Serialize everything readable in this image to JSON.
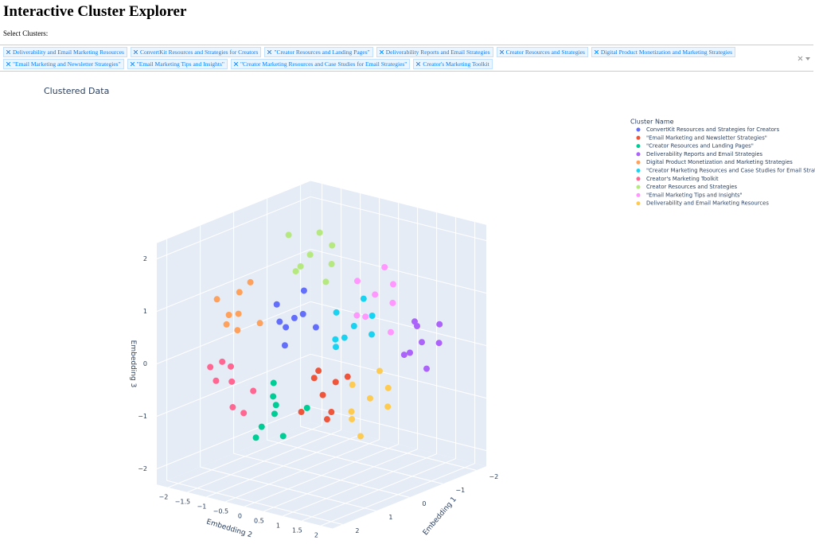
{
  "header": {
    "title": "Interactive Cluster Explorer",
    "label": "Select Clusters:"
  },
  "dropdown": {
    "chips": [
      "Deliverability and Email Marketing Resources",
      "ConvertKit Resources and Strategies for Creators",
      "\"Creator Resources and Landing Pages\"",
      "Deliverability Reports and Email Strategies",
      "Creator Resources and Strategies",
      "Digital Product Monetization and Marketing Strategies",
      "\"Email Marketing and Newsletter Strategies\"",
      "\"Email Marketing Tips and Insights\"",
      "\"Creator Marketing Resources and Case Studies for Email Strategies\"",
      "Creator's Marketing Toolkit"
    ]
  },
  "chart_data": {
    "type": "scatter3d",
    "title": "Clustered Data",
    "legend_title": "Cluster Name",
    "xlabel": "Embedding 1",
    "ylabel": "Embedding 2",
    "zlabel": "Embedding 3",
    "xlim": [
      -2.3,
      2.3
    ],
    "ylim": [
      -2.3,
      2.3
    ],
    "zlim": [
      -2.3,
      2.3
    ],
    "xticks": [
      {
        "value": -2,
        "label": "−2"
      },
      {
        "value": -1,
        "label": "−1"
      },
      0,
      1,
      2
    ],
    "yticks": [
      {
        "value": -2,
        "label": "−2"
      },
      {
        "value": -1.5,
        "label": "−1.5"
      },
      {
        "value": -1,
        "label": "−1"
      },
      {
        "value": -0.5,
        "label": "−0.5"
      },
      0,
      0.5,
      1,
      1.5,
      2
    ],
    "zticks": [
      {
        "value": -2,
        "label": "−2"
      },
      {
        "value": -1,
        "label": "−1"
      },
      0,
      1,
      2
    ],
    "grid": true,
    "series": [
      {
        "name": "ConvertKit Resources and Strategies for Creators",
        "color": "#636efa",
        "x": [
          0,
          0.3,
          -0.3,
          0.2,
          -0.2,
          0.4,
          -0.4,
          0.1
        ],
        "y": [
          -0.71,
          -0.91,
          -0.41,
          -0.31,
          -1.11,
          -0.61,
          -0.81,
          -1.01
        ],
        "z": [
          0.57,
          0.87,
          0.37,
          0.77,
          0.27,
          0.17,
          0.97,
          0.47
        ]
      },
      {
        "name": "\"Email Marketing and Newsletter Strategies\"",
        "color": "#EF553B",
        "x": [
          0.1,
          -0.3,
          0.4,
          -0.1,
          0.3,
          -0.4,
          0.2,
          0
        ],
        "y": [
          0.12,
          0.42,
          -0.18,
          -0.28,
          0.52,
          0.02,
          0.32,
          -0.08
        ],
        "z": [
          -0.72,
          -0.42,
          -1.02,
          -0.52,
          -0.92,
          -0.62,
          -1.12,
          -0.32
        ]
      },
      {
        "name": "\"Creator Resources and Landing Pages\"",
        "color": "#00cc96",
        "x": [
          0,
          0.3,
          -0.3,
          0.2,
          -0.2,
          0.5,
          -0.4,
          0.1
        ],
        "y": [
          -1.23,
          -0.93,
          -1.53,
          -0.83,
          -1.43,
          -1.13,
          -0.73,
          -1.63
        ],
        "z": [
          -1.35,
          -1.05,
          -1.15,
          -1.65,
          -0.85,
          -1.45,
          -1.25,
          -1.85
        ]
      },
      {
        "name": "Deliverability Reports and Email Strategies",
        "color": "#ab63fa",
        "x": [
          -1,
          -1.3,
          -0.7,
          -1.2,
          -0.8,
          -1.4,
          -0.9,
          -1.1
        ],
        "y": [
          1.75,
          1.95,
          1.55,
          1.45,
          2.05,
          1.85,
          1.65,
          1.35
        ],
        "z": [
          0.3,
          0.6,
          0.1,
          0.5,
          -0.1,
          0.2,
          0.7,
          0
        ]
      },
      {
        "name": "Digital Product Monetization and Marketing Strategies",
        "color": "#FFA15A",
        "x": [
          1,
          1.3,
          0.7,
          1.2,
          0.8,
          1.4,
          0.9,
          1.1
        ],
        "y": [
          -1.3,
          -1.6,
          -1.0,
          -1.1,
          -1.5,
          -1.2,
          -1.7,
          -0.9
        ],
        "z": [
          0.8,
          1.1,
          0.6,
          1.3,
          0.4,
          0.9,
          0.5,
          1.5
        ]
      },
      {
        "name": "\"Creator Marketing Resources and Case Studies for Email Strategies\"",
        "color": "#19d3f3",
        "x": [
          0,
          0.3,
          -0.3,
          0.2,
          -0.2,
          0.4,
          -0.4,
          0.1
        ],
        "y": [
          0.85,
          0.65,
          1.05,
          0.55,
          1.15,
          0.95,
          0.75,
          0.45
        ],
        "z": [
          0.7,
          1.0,
          0.5,
          0.3,
          0.9,
          0.6,
          1.1,
          0.4
        ]
      },
      {
        "name": "Creator's Marketing Toolkit",
        "color": "#FF6692",
        "x": [
          1.2,
          1.5,
          0.9,
          1.4,
          1.0,
          1.6,
          1.1,
          1.3
        ],
        "y": [
          -1.3,
          -1.6,
          -1.0,
          -1.1,
          -1.5,
          -1.2,
          -1.8,
          -0.9
        ],
        "z": [
          -0.44,
          -0.14,
          -0.64,
          -0.84,
          -0.24,
          0.06,
          -0.54,
          -0.94
        ]
      },
      {
        "name": "Creator Resources and Strategies",
        "color": "#B6E880",
        "x": [
          0,
          0.3,
          -0.3,
          0.2,
          -0.2,
          0.4,
          -0.4,
          0.1
        ],
        "y": [
          -0.3,
          -0.6,
          0,
          -0.5,
          0.1,
          -0.2,
          -0.4,
          0.2
        ],
        "z": [
          1.85,
          2.25,
          1.65,
          1.55,
          2.05,
          1.75,
          2.15,
          1.45
        ]
      },
      {
        "name": "\"Email Marketing Tips and Insights\"",
        "color": "#FF97FF",
        "x": [
          0,
          0.3,
          -0.3,
          0.2,
          -0.2,
          0.4,
          -0.4,
          0.1
        ],
        "y": [
          1.4,
          1.2,
          1.6,
          1.1,
          1.7,
          1.5,
          1.3,
          1.9
        ],
        "z": [
          1.4,
          1.7,
          1.2,
          1.0,
          1.6,
          1.1,
          1.8,
          0.8
        ]
      },
      {
        "name": "Deliverability and Email Marketing Resources",
        "color": "#FECB52",
        "x": [
          0,
          0.3,
          -0.3,
          0.2,
          -0.2,
          0.4,
          -0.4,
          0.1
        ],
        "y": [
          1.27,
          1.07,
          1.47,
          0.97,
          1.57,
          1.37,
          1.17,
          0.87
        ],
        "z": [
          -0.6,
          -0.3,
          -0.8,
          -1.0,
          -0.4,
          -1.2,
          -0.2,
          -0.9
        ]
      }
    ]
  }
}
